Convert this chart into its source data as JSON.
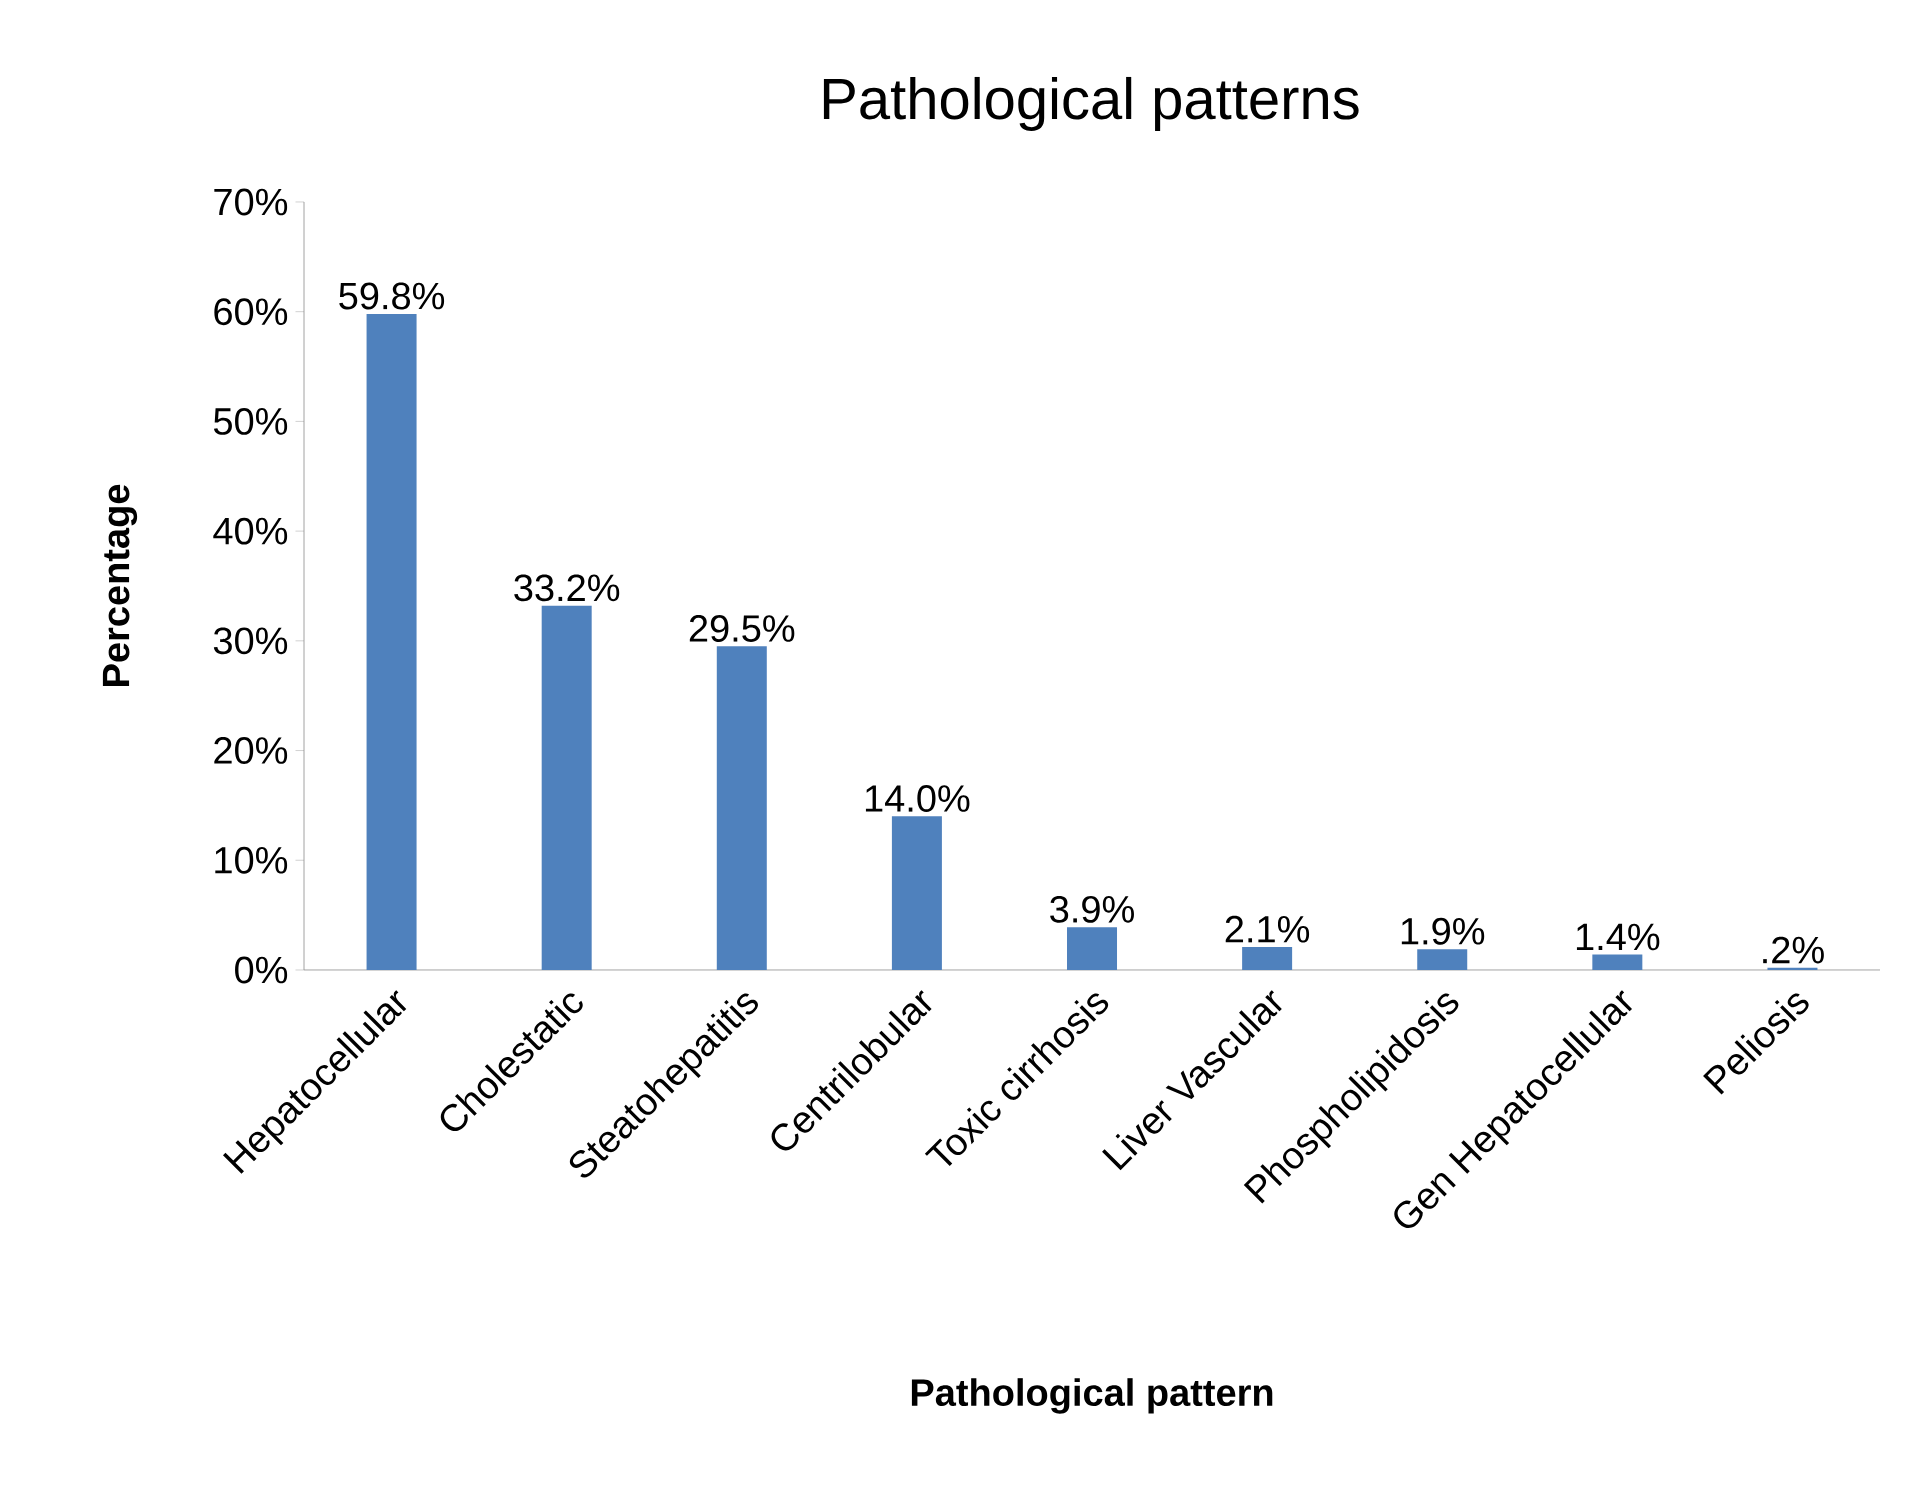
{
  "chart_data": {
    "type": "bar",
    "title": "Pathological patterns",
    "xlabel": "Pathological pattern",
    "ylabel": "Percentage",
    "categories": [
      "Hepatocellular",
      "Cholestatic",
      "Steatohepatitis",
      "Centrilobular",
      "Toxic cirrhosis",
      "Liver Vascular",
      "Phospholipidosis",
      "Gen Hepatocellular",
      "Peliosis"
    ],
    "values": [
      59.8,
      33.2,
      29.5,
      14.0,
      3.9,
      2.1,
      1.9,
      1.4,
      0.2
    ],
    "value_labels": [
      "59.8%",
      "33.2%",
      "29.5%",
      "14.0%",
      "3.9%",
      "2.1%",
      "1.9%",
      "1.4%",
      ".2%"
    ],
    "color": "#4f81bd",
    "ylim": [
      0,
      70
    ],
    "yticks": [
      {
        "value": 0,
        "label": "0%"
      },
      {
        "value": 10,
        "label": "10%"
      },
      {
        "value": 20,
        "label": "20%"
      },
      {
        "value": 30,
        "label": "30%"
      },
      {
        "value": 40,
        "label": "40%"
      },
      {
        "value": 50,
        "label": "50%"
      },
      {
        "value": 60,
        "label": "60%"
      },
      {
        "value": 70,
        "label": "70%"
      }
    ],
    "grid": false
  }
}
